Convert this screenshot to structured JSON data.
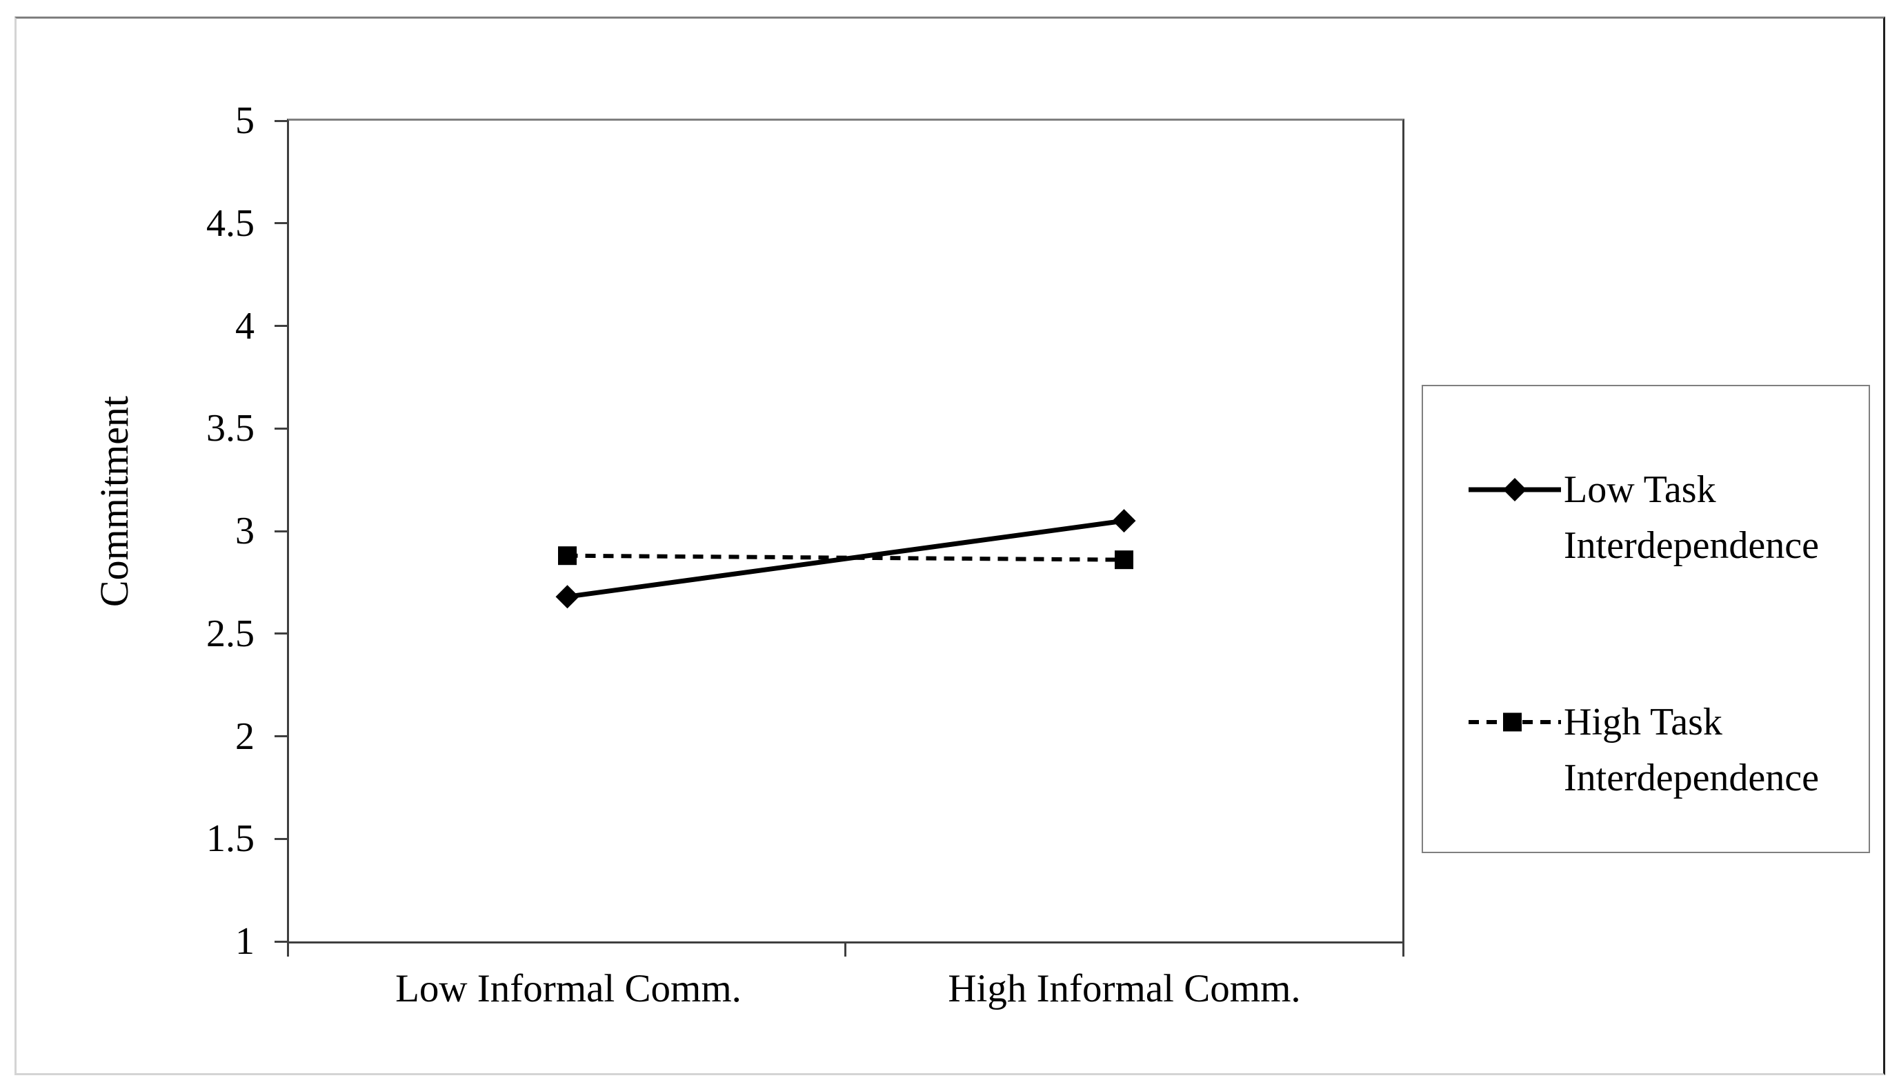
{
  "figure": {
    "background": "#ffffff",
    "frame_border_color": "#7f7f7f",
    "plot_border_color": "#3f3f3f",
    "series_color": "#000000"
  },
  "chart_data": {
    "type": "line",
    "categories": [
      "Low Informal Comm.",
      "High Informal Comm."
    ],
    "series": [
      {
        "name": "Low Task Interdependence",
        "values": [
          2.68,
          3.05
        ],
        "line_style": "solid",
        "marker": "diamond",
        "color": "#000000"
      },
      {
        "name": "High Task Interdependence",
        "values": [
          2.88,
          2.86
        ],
        "line_style": "dashed",
        "marker": "square",
        "color": "#000000"
      }
    ],
    "title": "",
    "xlabel": "",
    "ylabel": "Commitment",
    "ylim": [
      1,
      5
    ],
    "ytick_step": 0.5,
    "ytick_labels": [
      "5",
      "4.5",
      "4",
      "3.5",
      "3",
      "2.5",
      "2",
      "1.5",
      "1"
    ],
    "grid": false,
    "legend_position": "right"
  },
  "legend": {
    "entries": [
      {
        "line1": "Low Task",
        "line2": "Interdependence"
      },
      {
        "line1": "High Task",
        "line2": "Interdependence"
      }
    ]
  }
}
